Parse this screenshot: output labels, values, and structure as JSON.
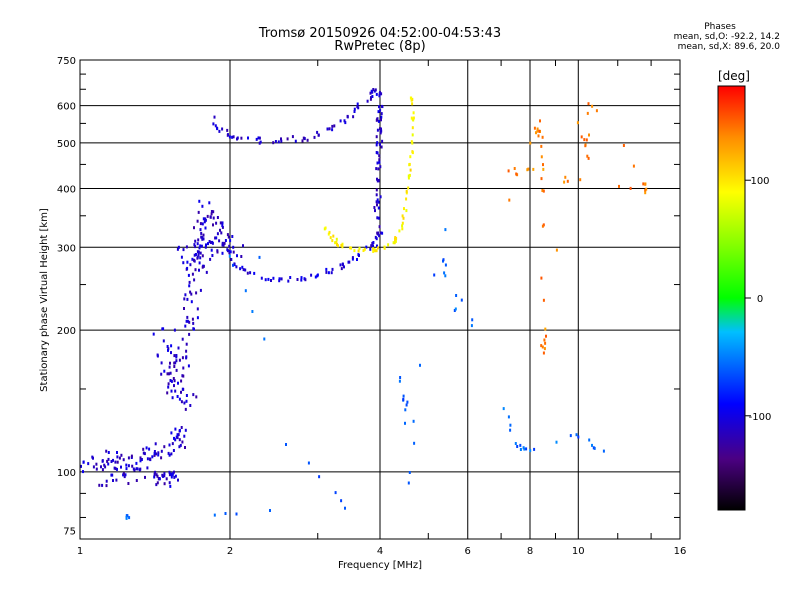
{
  "chart_data": {
    "type": "scatter",
    "title": "Tromsø 20150926 04:52:00-04:53:43",
    "subtitle": "RwPretec (8p)",
    "xlabel": "Frequency [MHz]",
    "ylabel": "Stationary phase Virtual Height [km]",
    "x_scale": "log",
    "y_scale": "log",
    "xlim": [
      1,
      16
    ],
    "ylim": [
      72,
      750
    ],
    "x_ticks": [
      1,
      2,
      4,
      6,
      8,
      10,
      16
    ],
    "x_tick_labels": [
      "1",
      "2",
      "4",
      "6",
      "8",
      "10",
      "16"
    ],
    "y_ticks": [
      75,
      100,
      200,
      300,
      400,
      500,
      600,
      750
    ],
    "y_tick_labels": [
      "75",
      "100",
      "200",
      "300",
      "400",
      "500",
      "600",
      "750"
    ],
    "x_minor_ticks": [
      3,
      5,
      7,
      9,
      12,
      14
    ],
    "y_minor_ticks": [
      80,
      90,
      150,
      250,
      350,
      450,
      550,
      650,
      700
    ],
    "grid": true,
    "legend": {
      "title": "Phases",
      "lines": [
        "mean, sd,O: -92.2, 14.2",
        "mean, sd,X:  89.6, 20.0"
      ],
      "placement": "top-right"
    },
    "colorbar": {
      "label": "[deg]",
      "range": [
        -180,
        180
      ],
      "ticks": [
        100,
        0,
        -100
      ],
      "tick_labels": [
        "100",
        "0",
        "-100"
      ]
    },
    "traces": [
      {
        "points": [
          [
            1.0,
            100
          ],
          [
            1.05,
            106
          ],
          [
            1.1,
            103
          ],
          [
            1.15,
            108
          ],
          [
            1.2,
            104
          ],
          [
            1.25,
            106
          ],
          [
            1.3,
            102
          ],
          [
            1.35,
            110
          ],
          [
            1.4,
            105
          ],
          [
            1.45,
            112
          ],
          [
            1.5,
            108
          ],
          [
            1.55,
            118
          ],
          [
            1.6,
            122
          ],
          [
            1.62,
            113
          ],
          [
            1.1,
            96
          ],
          [
            1.2,
            97
          ],
          [
            1.4,
            95
          ],
          [
            1.5,
            96
          ],
          [
            1.55,
            98
          ],
          [
            1.45,
            99
          ]
        ],
        "phase": -110,
        "spread": 0.03
      },
      {
        "points": [
          [
            1.45,
            200
          ],
          [
            1.48,
            180
          ],
          [
            1.5,
            160
          ],
          [
            1.52,
            170
          ],
          [
            1.55,
            150
          ],
          [
            1.58,
            145
          ],
          [
            1.6,
            165
          ],
          [
            1.62,
            190
          ],
          [
            1.65,
            210
          ],
          [
            1.68,
            230
          ],
          [
            1.7,
            260
          ],
          [
            1.72,
            300
          ],
          [
            1.75,
            340
          ],
          [
            1.8,
            370
          ],
          [
            1.58,
            180
          ],
          [
            1.65,
            140
          ]
        ],
        "phase": -110,
        "spread": 0.04
      },
      {
        "points": [
          [
            1.7,
            260
          ],
          [
            1.75,
            285
          ],
          [
            1.8,
            300
          ],
          [
            1.85,
            310
          ],
          [
            1.9,
            320
          ],
          [
            1.95,
            305
          ],
          [
            2.0,
            295
          ],
          [
            2.05,
            300
          ],
          [
            1.6,
            285
          ],
          [
            1.65,
            290
          ],
          [
            1.7,
            300
          ],
          [
            1.8,
            330
          ],
          [
            1.85,
            350
          ]
        ],
        "phase": -110,
        "spread": 0.05
      },
      {
        "points": [
          [
            1.85,
            560
          ],
          [
            1.9,
            540
          ],
          [
            2.0,
            520
          ],
          [
            2.1,
            510
          ],
          [
            2.3,
            505
          ],
          [
            2.5,
            505
          ],
          [
            2.8,
            510
          ],
          [
            3.0,
            520
          ],
          [
            3.2,
            540
          ],
          [
            3.4,
            560
          ],
          [
            3.6,
            590
          ],
          [
            3.8,
            620
          ],
          [
            3.9,
            640
          ]
        ],
        "phase": -110,
        "spread": 0.015
      },
      {
        "points": [
          [
            2.0,
            290
          ],
          [
            2.1,
            270
          ],
          [
            2.2,
            262
          ],
          [
            2.4,
            257
          ],
          [
            2.6,
            256
          ],
          [
            2.8,
            258
          ],
          [
            3.0,
            262
          ],
          [
            3.2,
            268
          ],
          [
            3.4,
            276
          ],
          [
            3.6,
            286
          ],
          [
            3.8,
            300
          ],
          [
            4.0,
            320
          ]
        ],
        "phase": -105,
        "spread": 0.012
      },
      {
        "points": [
          [
            3.95,
            300
          ],
          [
            3.97,
            350
          ],
          [
            3.98,
            400
          ],
          [
            3.99,
            450
          ],
          [
            4.0,
            500
          ],
          [
            4.0,
            550
          ],
          [
            4.01,
            600
          ],
          [
            4.02,
            640
          ],
          [
            3.92,
            360
          ],
          [
            3.94,
            420
          ],
          [
            3.96,
            480
          ],
          [
            3.98,
            560
          ]
        ],
        "phase": -110,
        "spread": 0.01
      },
      {
        "points": [
          [
            3.1,
            330
          ],
          [
            3.2,
            315
          ],
          [
            3.3,
            305
          ],
          [
            3.5,
            298
          ],
          [
            3.7,
            295
          ],
          [
            3.9,
            296
          ],
          [
            4.1,
            300
          ],
          [
            4.3,
            310
          ],
          [
            4.4,
            330
          ],
          [
            4.5,
            360
          ],
          [
            4.55,
            400
          ],
          [
            4.6,
            450
          ],
          [
            4.65,
            500
          ],
          [
            4.65,
            560
          ],
          [
            4.65,
            620
          ]
        ],
        "phase": 95,
        "spread": 0.008
      },
      {
        "points": [
          [
            7.2,
            380
          ],
          [
            8.4,
            560
          ],
          [
            8.5,
            335
          ],
          [
            8.5,
            190
          ],
          [
            8.5,
            180
          ],
          [
            10.0,
            550
          ],
          [
            10.4,
            465
          ],
          [
            10.5,
            600
          ],
          [
            13.6,
            410
          ],
          [
            13.6,
            395
          ],
          [
            7.3,
            440
          ],
          [
            8.5,
            440
          ],
          [
            8.3,
            530
          ]
        ],
        "phase": 140,
        "spread": 0.01
      },
      {
        "points": [
          [
            4.4,
            160
          ],
          [
            4.5,
            140
          ],
          [
            4.6,
            95
          ],
          [
            5.4,
            325
          ],
          [
            5.4,
            260
          ],
          [
            7.2,
            130
          ],
          [
            7.6,
            113
          ],
          [
            8.0,
            110
          ],
          [
            10.0,
            120
          ],
          [
            11.3,
            110
          ],
          [
            2.0,
            290
          ],
          [
            2.6,
            115
          ],
          [
            3.4,
            84
          ],
          [
            1.25,
            80
          ]
        ],
        "phase": -60,
        "spread": 0.01
      }
    ]
  }
}
